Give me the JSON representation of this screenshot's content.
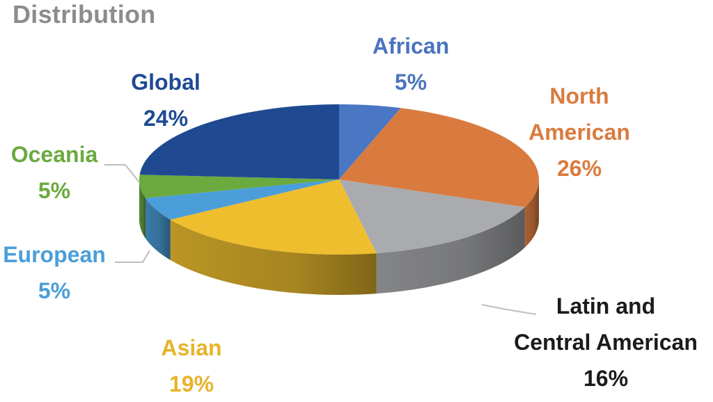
{
  "chart_data": {
    "type": "pie",
    "title": "Distribution",
    "slices": [
      {
        "name": "African",
        "value": 5,
        "label": "5%",
        "color": "#4a77c4"
      },
      {
        "name": "North American",
        "name_lines": [
          "North",
          "American"
        ],
        "value": 26,
        "label": "26%",
        "color": "#d97b3f"
      },
      {
        "name": "Latin and Central American",
        "name_lines": [
          "Latin and",
          "Central American"
        ],
        "value": 16,
        "label": "16%",
        "color": "#a9abae"
      },
      {
        "name": "Asian",
        "value": 19,
        "label": "19%",
        "color": "#efbe2e"
      },
      {
        "name": "European",
        "value": 5,
        "label": "5%",
        "color": "#4b9ed9"
      },
      {
        "name": "Oceania",
        "value": 5,
        "label": "5%",
        "color": "#6aaa3f"
      },
      {
        "name": "Global",
        "value": 24,
        "label": "24%",
        "color": "#1f4a92"
      }
    ],
    "label_colors": {
      "African": "#4a74bf",
      "North American": "#d97b3f",
      "Latin and Central American": "#1b1b1b",
      "Asian": "#e7b42a",
      "European": "#4b9ed9",
      "Oceania": "#6aaa3f",
      "Global": "#1f4a92"
    },
    "start_angle_deg": -90,
    "direction": "clockwise",
    "style": "3d-tilted"
  }
}
